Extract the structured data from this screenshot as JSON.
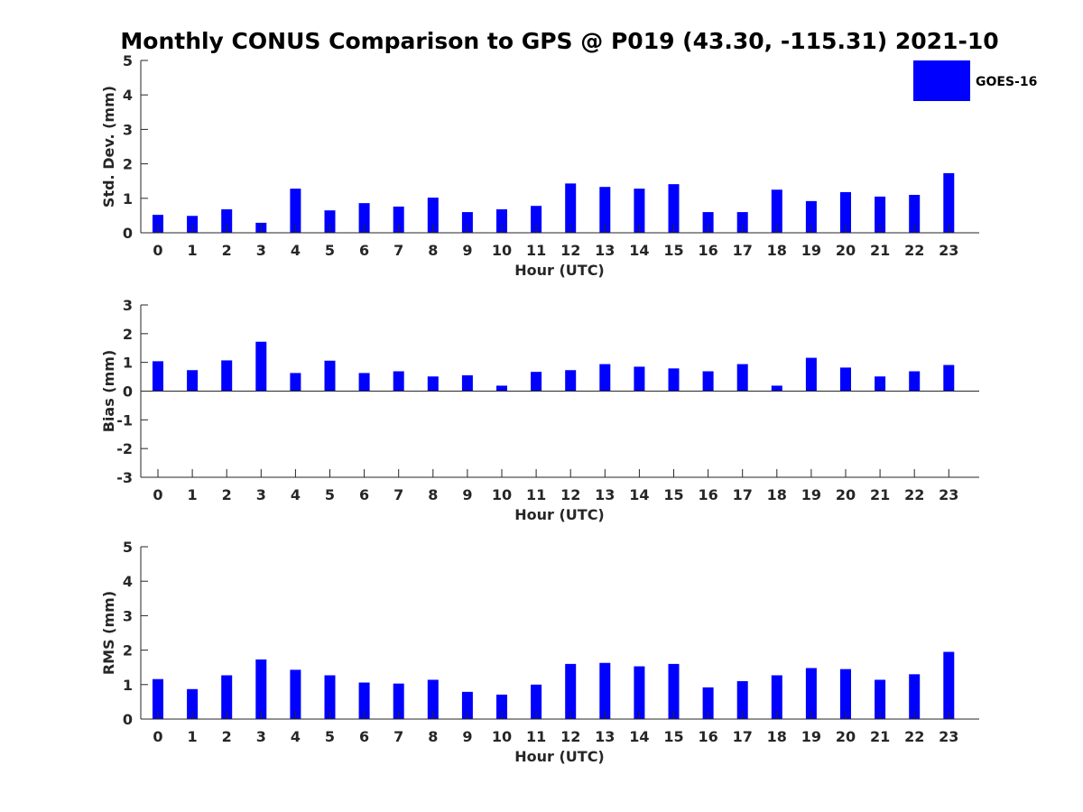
{
  "title": "Monthly CONUS Comparison to GPS @ P019 (43.30, -115.31) 2021-10",
  "legend": {
    "label": "GOES-16",
    "color": "#0000ff",
    "placement": "top-right"
  },
  "chart_data": [
    {
      "type": "bar",
      "name": "std-dev",
      "xlabel": "Hour (UTC)",
      "ylabel": "Std. Dev. (mm)",
      "ylim": [
        0,
        5
      ],
      "yticks": [
        "0",
        "1",
        "2",
        "3",
        "4",
        "5"
      ],
      "categories": [
        "0",
        "1",
        "2",
        "3",
        "4",
        "5",
        "6",
        "7",
        "8",
        "9",
        "10",
        "11",
        "12",
        "13",
        "14",
        "15",
        "16",
        "17",
        "18",
        "19",
        "20",
        "21",
        "22",
        "23"
      ],
      "series": [
        {
          "name": "GOES-16",
          "color": "#0000ff",
          "values": [
            0.52,
            0.49,
            0.68,
            0.29,
            1.28,
            0.65,
            0.86,
            0.76,
            1.02,
            0.6,
            0.68,
            0.78,
            1.43,
            1.33,
            1.28,
            1.41,
            0.6,
            0.6,
            1.25,
            0.92,
            1.18,
            1.05,
            1.1,
            1.73
          ]
        }
      ]
    },
    {
      "type": "bar",
      "name": "bias",
      "xlabel": "Hour (UTC)",
      "ylabel": "Bias (mm)",
      "ylim": [
        -3,
        3
      ],
      "yticks": [
        "-3",
        "-2",
        "-1",
        "0",
        "1",
        "2",
        "3"
      ],
      "categories": [
        "0",
        "1",
        "2",
        "3",
        "4",
        "5",
        "6",
        "7",
        "8",
        "9",
        "10",
        "11",
        "12",
        "13",
        "14",
        "15",
        "16",
        "17",
        "18",
        "19",
        "20",
        "21",
        "22",
        "23"
      ],
      "series": [
        {
          "name": "GOES-16",
          "color": "#0000ff",
          "values": [
            1.04,
            0.73,
            1.07,
            1.72,
            0.63,
            1.06,
            0.63,
            0.69,
            0.51,
            0.55,
            0.19,
            0.67,
            0.73,
            0.94,
            0.85,
            0.79,
            0.69,
            0.94,
            0.19,
            1.16,
            0.82,
            0.51,
            0.69,
            0.91
          ]
        }
      ]
    },
    {
      "type": "bar",
      "name": "rms",
      "xlabel": "Hour (UTC)",
      "ylabel": "RMS (mm)",
      "ylim": [
        0,
        5
      ],
      "yticks": [
        "0",
        "1",
        "2",
        "3",
        "4",
        "5"
      ],
      "categories": [
        "0",
        "1",
        "2",
        "3",
        "4",
        "5",
        "6",
        "7",
        "8",
        "9",
        "10",
        "11",
        "12",
        "13",
        "14",
        "15",
        "16",
        "17",
        "18",
        "19",
        "20",
        "21",
        "22",
        "23"
      ],
      "series": [
        {
          "name": "GOES-16",
          "color": "#0000ff",
          "values": [
            1.16,
            0.87,
            1.27,
            1.73,
            1.43,
            1.27,
            1.06,
            1.03,
            1.14,
            0.79,
            0.71,
            1.0,
            1.6,
            1.63,
            1.53,
            1.6,
            0.92,
            1.1,
            1.27,
            1.48,
            1.45,
            1.14,
            1.3,
            1.95
          ]
        }
      ]
    }
  ]
}
